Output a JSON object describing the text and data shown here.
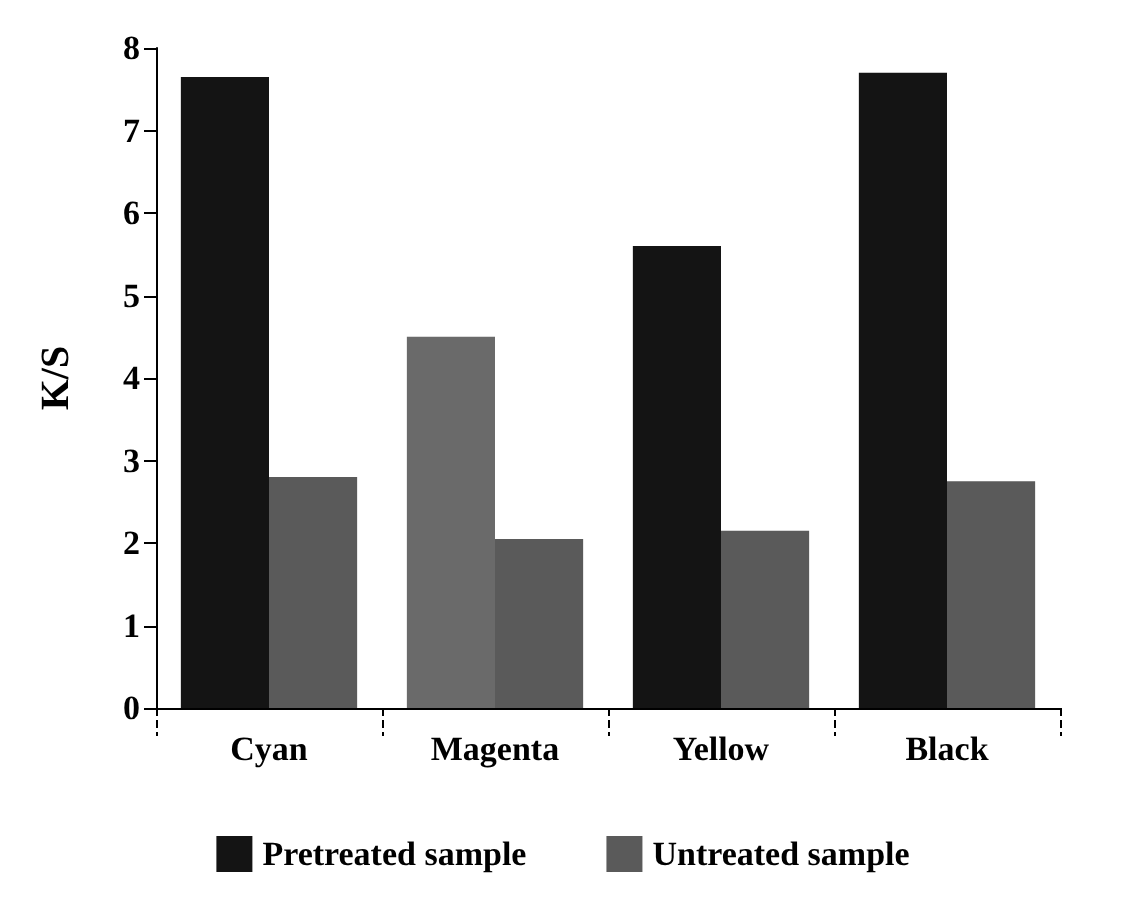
{
  "chart_data": {
    "type": "bar",
    "ylabel": "K/S",
    "categories": [
      "Cyan",
      "Magenta",
      "Yellow",
      "Black"
    ],
    "series": [
      {
        "name": "Pretreated sample",
        "color": "#141414",
        "colors": [
          "#141414",
          "#6a6a6a",
          "#141414",
          "#141414"
        ],
        "values": [
          7.65,
          4.5,
          5.6,
          7.7
        ]
      },
      {
        "name": "Untreated sample",
        "color": "#5a5a5a",
        "values": [
          2.8,
          2.05,
          2.15,
          2.75
        ]
      }
    ],
    "ylim": [
      0,
      8
    ],
    "yticks": [
      0,
      1,
      2,
      3,
      4,
      5,
      6,
      7,
      8
    ],
    "grid": false,
    "legend": "bottom"
  }
}
